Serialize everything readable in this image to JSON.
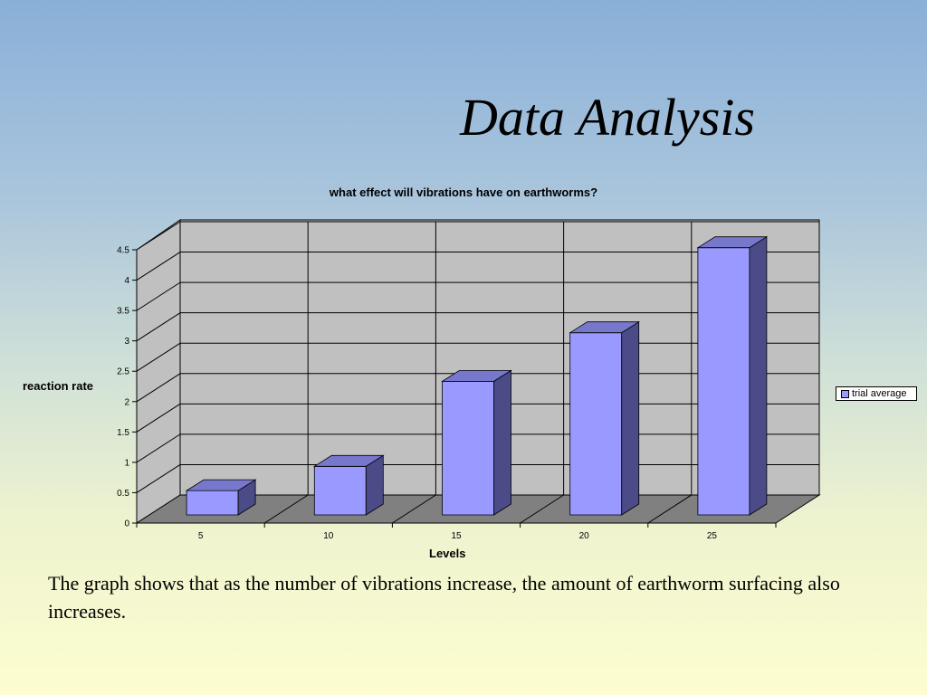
{
  "slide": {
    "title": "Data Analysis",
    "caption": "The graph shows that as the number of vibrations increase, the amount of earthworm surfacing also increases."
  },
  "chart_data": {
    "type": "bar",
    "title": "what effect will vibrations have on earthworms?",
    "xlabel": "Levels",
    "ylabel": "reaction rate",
    "categories": [
      "5",
      "10",
      "15",
      "20",
      "25"
    ],
    "series": [
      {
        "name": "trial average",
        "values": [
          0.4,
          0.8,
          2.2,
          3.0,
          4.4
        ]
      }
    ],
    "ylim": [
      0,
      4.5
    ],
    "yticks": [
      "0",
      "0.5",
      "1",
      "1.5",
      "2",
      "2.5",
      "3",
      "3.5",
      "4",
      "4.5"
    ],
    "grid": true,
    "three_d": true,
    "legend_position": "right",
    "colors": {
      "bar_front": "#9999ff",
      "bar_side": "#4b4b88",
      "bar_top": "#7777cc",
      "wall": "#c0c0c0",
      "floor": "#808080"
    }
  }
}
